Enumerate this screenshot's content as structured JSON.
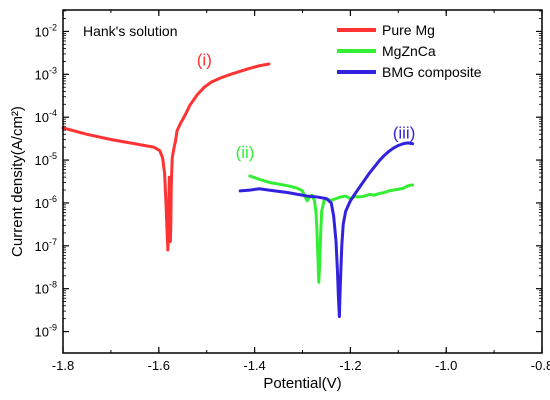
{
  "chart_data": {
    "type": "line",
    "annotation": "Hank's solution",
    "xlabel": "Potential(V)",
    "ylabel": "Current density(A/cm²)",
    "xlim": [
      -1.8,
      -0.8
    ],
    "ylim_log10": [
      -9.5,
      -1.5
    ],
    "y_scale": "log",
    "grid": false,
    "legend_position": "top-right",
    "x_ticks": [
      {
        "value": -1.8,
        "label": "-1.8"
      },
      {
        "value": -1.6,
        "label": "-1.6"
      },
      {
        "value": -1.4,
        "label": "-1.4"
      },
      {
        "value": -1.2,
        "label": "-1.2"
      },
      {
        "value": -1.0,
        "label": "-1.0"
      },
      {
        "value": -0.8,
        "label": "-0.8"
      }
    ],
    "y_ticks": [
      {
        "exp": -2,
        "base": "10",
        "sup": "-2"
      },
      {
        "exp": -3,
        "base": "10",
        "sup": "-3"
      },
      {
        "exp": -4,
        "base": "10",
        "sup": "-4"
      },
      {
        "exp": -5,
        "base": "10",
        "sup": "-5"
      },
      {
        "exp": -6,
        "base": "10",
        "sup": "-6"
      },
      {
        "exp": -7,
        "base": "10",
        "sup": "-7"
      },
      {
        "exp": -8,
        "base": "10",
        "sup": "-8"
      },
      {
        "exp": -9,
        "base": "10",
        "sup": "-9"
      }
    ],
    "series": [
      {
        "name": "Pure Mg",
        "color": "#ff3333",
        "label": "(i)",
        "label_at": [
          -1.505,
          -2.8
        ],
        "points": [
          [
            -1.8,
            -4.25
          ],
          [
            -1.75,
            -4.4
          ],
          [
            -1.7,
            -4.52
          ],
          [
            -1.66,
            -4.6
          ],
          [
            -1.63,
            -4.66
          ],
          [
            -1.61,
            -4.7
          ],
          [
            -1.598,
            -4.78
          ],
          [
            -1.592,
            -4.95
          ],
          [
            -1.588,
            -5.3
          ],
          [
            -1.585,
            -6.0
          ],
          [
            -1.583,
            -6.6
          ],
          [
            -1.581,
            -7.1
          ],
          [
            -1.58,
            -6.7
          ],
          [
            -1.579,
            -6.0
          ],
          [
            -1.578,
            -5.4
          ],
          [
            -1.577,
            -5.9
          ],
          [
            -1.576,
            -6.9
          ],
          [
            -1.575,
            -6.6
          ],
          [
            -1.574,
            -5.6
          ],
          [
            -1.572,
            -4.95
          ],
          [
            -1.568,
            -4.7
          ],
          [
            -1.565,
            -4.55
          ],
          [
            -1.562,
            -4.32
          ],
          [
            -1.555,
            -4.15
          ],
          [
            -1.545,
            -3.95
          ],
          [
            -1.535,
            -3.72
          ],
          [
            -1.52,
            -3.48
          ],
          [
            -1.505,
            -3.3
          ],
          [
            -1.49,
            -3.18
          ],
          [
            -1.47,
            -3.08
          ],
          [
            -1.45,
            -3.0
          ],
          [
            -1.43,
            -2.93
          ],
          [
            -1.41,
            -2.86
          ],
          [
            -1.39,
            -2.8
          ],
          [
            -1.37,
            -2.76
          ]
        ]
      },
      {
        "name": "MgZnCa",
        "color": "#33ee33",
        "label": "(ii)",
        "label_at": [
          -1.42,
          -4.95
        ],
        "points": [
          [
            -1.41,
            -5.37
          ],
          [
            -1.39,
            -5.45
          ],
          [
            -1.37,
            -5.52
          ],
          [
            -1.35,
            -5.56
          ],
          [
            -1.33,
            -5.6
          ],
          [
            -1.31,
            -5.66
          ],
          [
            -1.3,
            -5.72
          ],
          [
            -1.295,
            -5.85
          ],
          [
            -1.29,
            -5.95
          ],
          [
            -1.285,
            -5.85
          ],
          [
            -1.28,
            -5.82
          ],
          [
            -1.275,
            -5.95
          ],
          [
            -1.272,
            -6.2
          ],
          [
            -1.27,
            -6.6
          ],
          [
            -1.268,
            -7.2
          ],
          [
            -1.266,
            -7.85
          ],
          [
            -1.264,
            -7.4
          ],
          [
            -1.262,
            -6.7
          ],
          [
            -1.26,
            -6.2
          ],
          [
            -1.255,
            -5.95
          ],
          [
            -1.25,
            -5.9
          ],
          [
            -1.24,
            -5.94
          ],
          [
            -1.23,
            -5.9
          ],
          [
            -1.22,
            -5.86
          ],
          [
            -1.21,
            -5.84
          ],
          [
            -1.2,
            -5.9
          ],
          [
            -1.19,
            -5.85
          ],
          [
            -1.18,
            -5.86
          ],
          [
            -1.17,
            -5.84
          ],
          [
            -1.16,
            -5.8
          ],
          [
            -1.15,
            -5.82
          ],
          [
            -1.14,
            -5.78
          ],
          [
            -1.13,
            -5.76
          ],
          [
            -1.12,
            -5.72
          ],
          [
            -1.11,
            -5.7
          ],
          [
            -1.1,
            -5.68
          ],
          [
            -1.09,
            -5.66
          ],
          [
            -1.08,
            -5.6
          ],
          [
            -1.07,
            -5.58
          ]
        ]
      },
      {
        "name": "BMG composite",
        "color": "#3322dd",
        "label": "(iii)",
        "label_at": [
          -1.088,
          -4.5
        ],
        "points": [
          [
            -1.43,
            -5.72
          ],
          [
            -1.41,
            -5.7
          ],
          [
            -1.39,
            -5.67
          ],
          [
            -1.37,
            -5.7
          ],
          [
            -1.35,
            -5.73
          ],
          [
            -1.33,
            -5.76
          ],
          [
            -1.31,
            -5.8
          ],
          [
            -1.29,
            -5.84
          ],
          [
            -1.27,
            -5.86
          ],
          [
            -1.25,
            -5.9
          ],
          [
            -1.24,
            -6.0
          ],
          [
            -1.235,
            -6.3
          ],
          [
            -1.23,
            -6.9
          ],
          [
            -1.227,
            -7.6
          ],
          [
            -1.225,
            -8.2
          ],
          [
            -1.223,
            -8.65
          ],
          [
            -1.221,
            -7.9
          ],
          [
            -1.218,
            -7.0
          ],
          [
            -1.215,
            -6.5
          ],
          [
            -1.21,
            -6.2
          ],
          [
            -1.2,
            -5.95
          ],
          [
            -1.19,
            -5.78
          ],
          [
            -1.18,
            -5.62
          ],
          [
            -1.17,
            -5.46
          ],
          [
            -1.16,
            -5.3
          ],
          [
            -1.15,
            -5.16
          ],
          [
            -1.14,
            -5.02
          ],
          [
            -1.13,
            -4.9
          ],
          [
            -1.12,
            -4.8
          ],
          [
            -1.11,
            -4.72
          ],
          [
            -1.1,
            -4.66
          ],
          [
            -1.09,
            -4.62
          ],
          [
            -1.08,
            -4.6
          ],
          [
            -1.07,
            -4.62
          ]
        ]
      }
    ]
  }
}
